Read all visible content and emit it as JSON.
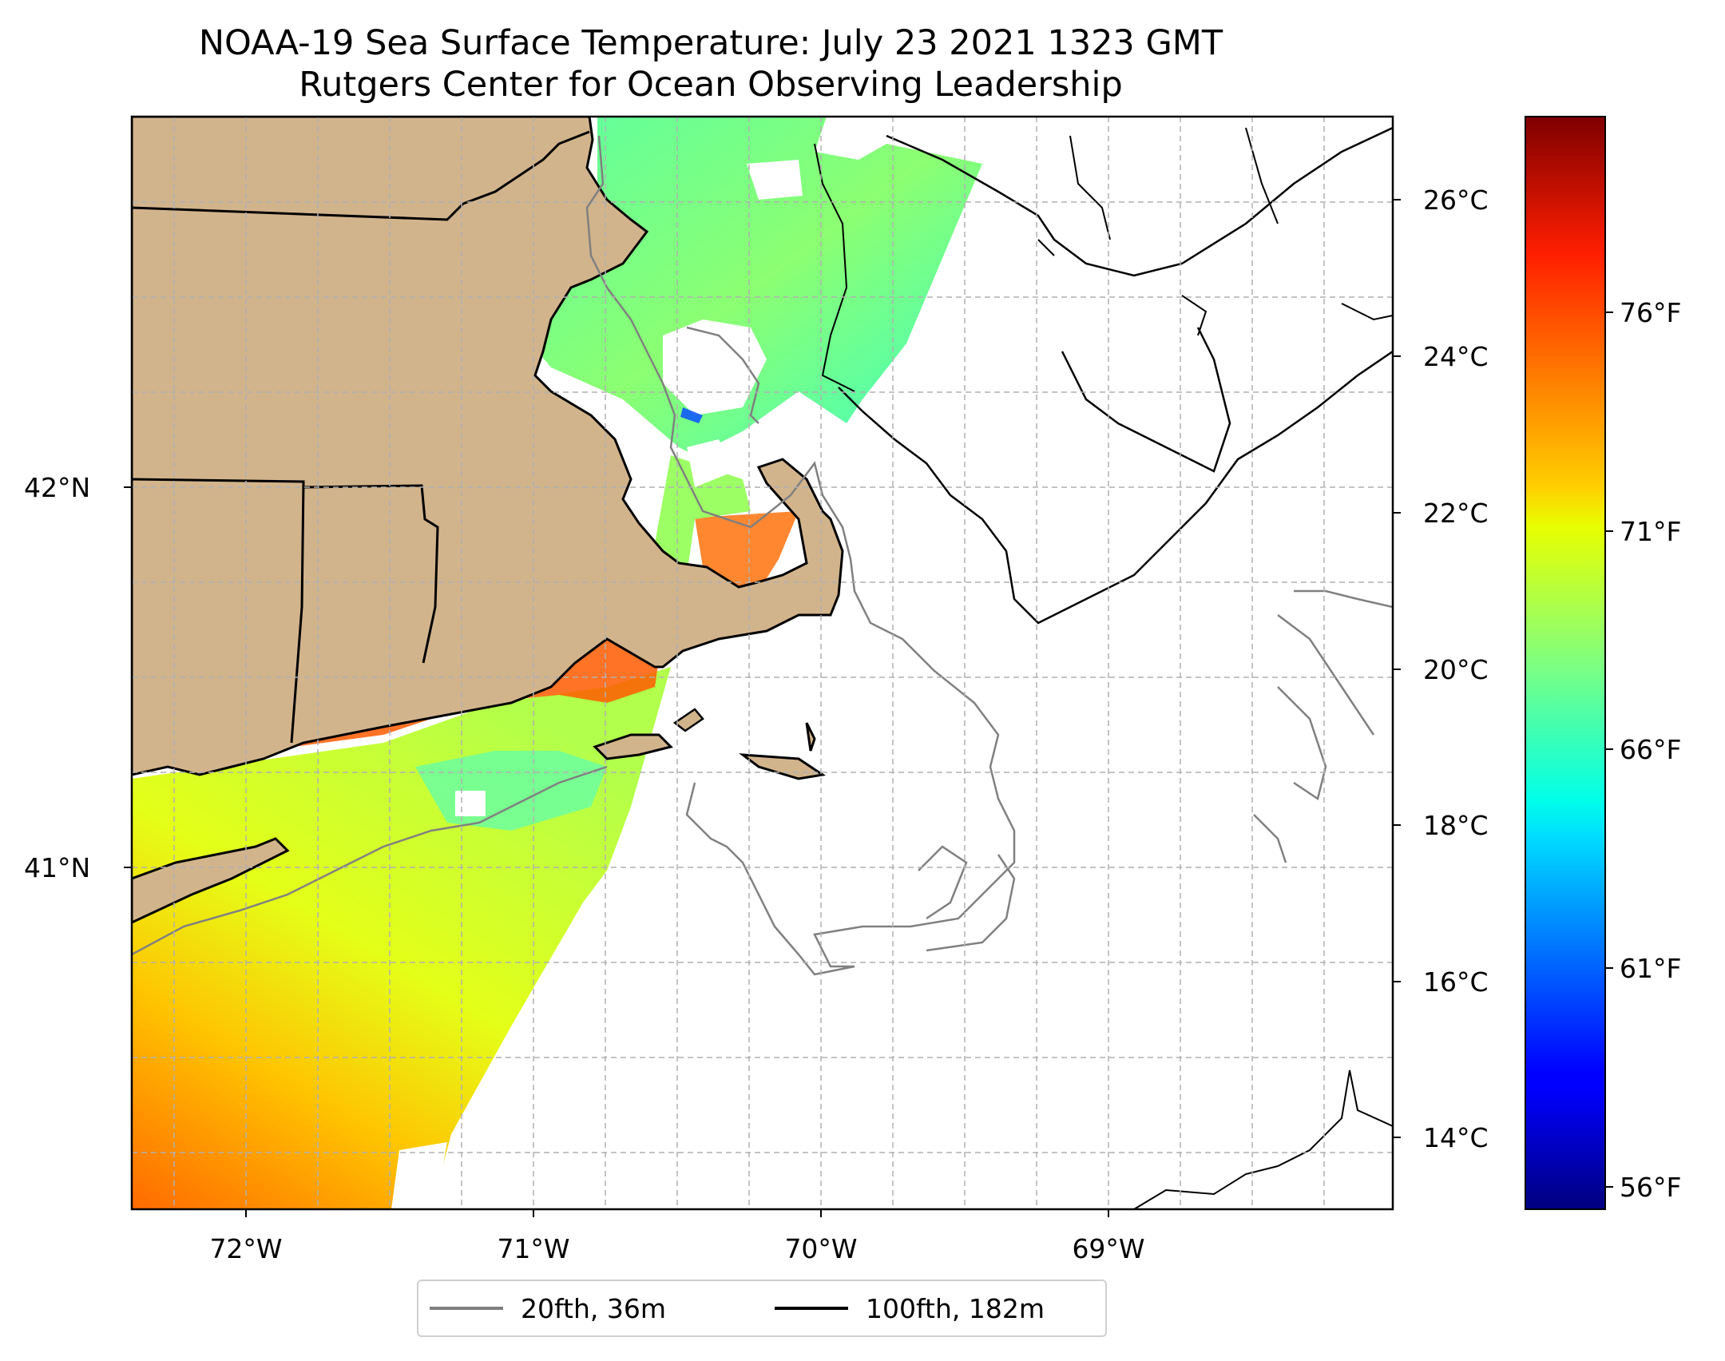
{
  "title": {
    "line1": "NOAA-19 Sea Surface Temperature: July 23 2021 1323 GMT",
    "line2": "Rutgers Center for Ocean Observing Leadership"
  },
  "axes": {
    "x_ticks": [
      "72°W",
      "71°W",
      "70°W",
      "69°W"
    ],
    "y_ticks": [
      "42°N",
      "41°N"
    ]
  },
  "colorbar": {
    "celsius_ticks": [
      "26°C",
      "24°C",
      "22°C",
      "20°C",
      "18°C",
      "16°C",
      "14°C"
    ],
    "fahrenheit_ticks": [
      "76°F",
      "71°F",
      "66°F",
      "61°F",
      "56°F"
    ],
    "colormap": "jet",
    "range_c": [
      13.0,
      27.0
    ]
  },
  "legend": {
    "items": [
      {
        "label": "20fth, 36m",
        "color": "#808080"
      },
      {
        "label": "100fth, 182m",
        "color": "#000000"
      }
    ]
  },
  "colors": {
    "land": "#d2b48c",
    "isobath_20fth": "#808080",
    "isobath_100fth": "#000000",
    "grid": "#b0b0b0"
  }
}
